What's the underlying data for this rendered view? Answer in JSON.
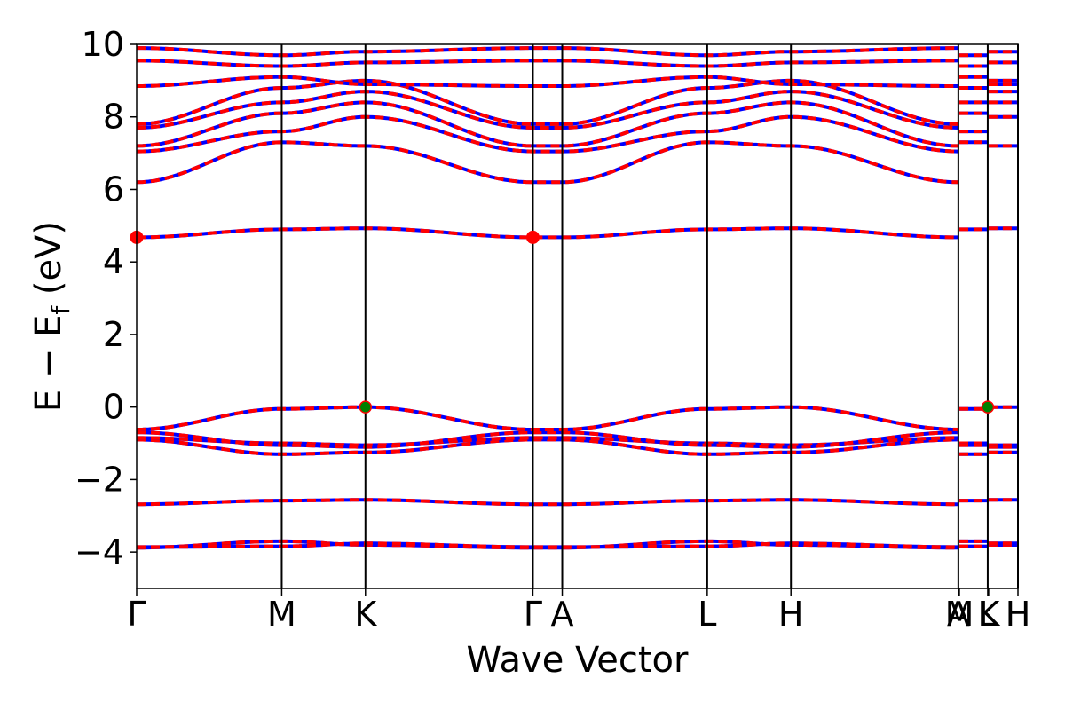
{
  "chart_data": {
    "type": "line",
    "title": "",
    "xlabel": "Wave Vector",
    "ylabel": "E − E",
    "ylabel_sub": "f",
    "ylabel_unit": " (eV)",
    "ylim": [
      -5,
      10
    ],
    "yticks": [
      {
        "value": -4,
        "label": "−4"
      },
      {
        "value": -2,
        "label": "−2"
      },
      {
        "value": 0,
        "label": "0"
      },
      {
        "value": 2,
        "label": "2"
      },
      {
        "value": 4,
        "label": "4"
      },
      {
        "value": 6,
        "label": "6"
      },
      {
        "value": 8,
        "label": "8"
      },
      {
        "value": 10,
        "label": "10"
      }
    ],
    "xlim": [
      0,
      1
    ],
    "kpoints": [
      {
        "label": "Γ",
        "x": 0.0
      },
      {
        "label": "M",
        "x": 0.1646
      },
      {
        "label": "K",
        "x": 0.2596
      },
      {
        "label": "Γ",
        "x": 0.4496
      },
      {
        "label": "A",
        "x": 0.4829
      },
      {
        "label": "L",
        "x": 0.6474
      },
      {
        "label": "H",
        "x": 0.7424
      },
      {
        "label": "A",
        "x": 0.9324
      },
      {
        "label": "M",
        "x": 0.9335
      },
      {
        "label": "L",
        "x": 0.9657
      },
      {
        "label": "K",
        "x": 0.9667
      },
      {
        "label": "H",
        "x": 1.0
      }
    ],
    "divider_lines_x": [
      0.1646,
      0.2596,
      0.4496,
      0.4829,
      0.6474,
      0.7424,
      0.9324,
      0.9657,
      1.0
    ],
    "series_style": {
      "spin_up_color": "#0000ff",
      "spin_down_color": "#ff0000",
      "line_style": "dashed"
    },
    "bands": [
      [
        -3.88,
        -3.7,
        -3.8,
        -3.88,
        -3.88,
        -3.7,
        -3.8,
        -3.88
      ],
      [
        -3.86,
        -3.84,
        -3.76,
        -3.86,
        -3.86,
        -3.84,
        -3.76,
        -3.86
      ],
      [
        -2.68,
        -2.58,
        -2.56,
        -2.68,
        -2.68,
        -2.58,
        -2.56,
        -2.68
      ],
      [
        -0.9,
        -1.3,
        -1.25,
        -0.9,
        -0.9,
        -1.3,
        -1.25,
        -0.9
      ],
      [
        -0.85,
        -1.0,
        -1.05,
        -0.85,
        -0.85,
        -1.0,
        -1.05,
        -0.85
      ],
      [
        -0.7,
        -1.05,
        -1.1,
        -0.7,
        -0.7,
        -1.05,
        -1.1,
        -0.7
      ],
      [
        -0.62,
        -0.05,
        0.0,
        -0.62,
        -0.62,
        -0.05,
        0.0,
        -0.62
      ],
      [
        4.68,
        4.9,
        4.93,
        4.68,
        4.68,
        4.9,
        4.93,
        4.68
      ],
      [
        6.2,
        7.3,
        7.2,
        6.2,
        6.2,
        7.3,
        7.2,
        6.2
      ],
      [
        7.05,
        7.6,
        8.0,
        7.05,
        7.05,
        7.6,
        8.0,
        7.05
      ],
      [
        7.2,
        8.1,
        8.4,
        7.2,
        7.2,
        8.1,
        8.4,
        7.2
      ],
      [
        7.7,
        8.4,
        8.7,
        7.7,
        7.7,
        8.4,
        8.7,
        7.7
      ],
      [
        7.8,
        8.8,
        9.0,
        7.8,
        7.8,
        8.8,
        9.0,
        7.8
      ],
      [
        8.85,
        9.1,
        8.9,
        8.85,
        8.85,
        9.1,
        8.9,
        8.85
      ],
      [
        9.55,
        9.4,
        9.5,
        9.55,
        9.55,
        9.4,
        9.5,
        9.55
      ],
      [
        9.9,
        9.7,
        9.8,
        9.9,
        9.9,
        9.7,
        9.8,
        9.9
      ]
    ],
    "markers": [
      {
        "type": "cbm",
        "color": "#ff0000",
        "x": 0.0,
        "y": 4.68
      },
      {
        "type": "cbm",
        "color": "#ff0000",
        "x": 0.4496,
        "y": 4.68
      },
      {
        "type": "vbm",
        "color": "#008000",
        "x": 0.2596,
        "y": 0.0
      },
      {
        "type": "vbm",
        "color": "#008000",
        "x": 0.9657,
        "y": 0.0
      }
    ]
  }
}
